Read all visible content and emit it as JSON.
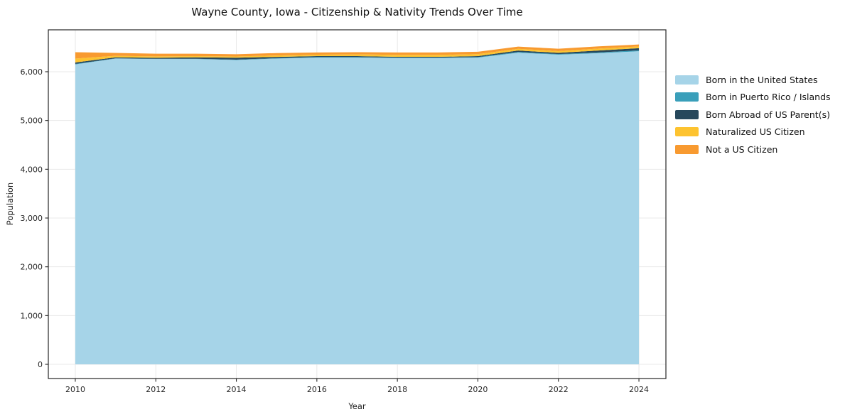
{
  "chart_data": {
    "type": "area",
    "stacked": true,
    "title": "Wayne County, Iowa - Citizenship & Nativity Trends Over Time",
    "xlabel": "Year",
    "ylabel": "Population",
    "x": [
      2010,
      2011,
      2012,
      2013,
      2014,
      2015,
      2016,
      2017,
      2018,
      2019,
      2020,
      2021,
      2022,
      2023,
      2024
    ],
    "series": [
      {
        "name": "Born in the United States",
        "color": "#a6d4e8",
        "values": [
          6150,
          6270,
          6260,
          6260,
          6240,
          6270,
          6290,
          6290,
          6280,
          6280,
          6290,
          6390,
          6350,
          6380,
          6420
        ]
      },
      {
        "name": "Born in Puerto Rico / Islands",
        "color": "#3a9fba",
        "values": [
          10,
          5,
          5,
          5,
          8,
          8,
          10,
          10,
          10,
          10,
          10,
          15,
          12,
          15,
          18
        ]
      },
      {
        "name": "Born Abroad of US Parent(s)",
        "color": "#27485c",
        "values": [
          30,
          20,
          20,
          30,
          40,
          25,
          20,
          20,
          15,
          15,
          20,
          30,
          25,
          40,
          45
        ]
      },
      {
        "name": "Naturalized US Citizen",
        "color": "#fdc330",
        "values": [
          80,
          30,
          30,
          25,
          25,
          30,
          30,
          35,
          40,
          40,
          40,
          35,
          35,
          40,
          35
        ]
      },
      {
        "name": "Not a US Citizen",
        "color": "#f89a30",
        "values": [
          130,
          60,
          55,
          50,
          45,
          50,
          45,
          45,
          50,
          50,
          50,
          45,
          50,
          45,
          40
        ]
      }
    ],
    "xticks": {
      "values": [
        2010,
        2012,
        2014,
        2016,
        2018,
        2020,
        2022,
        2024
      ],
      "labels": [
        "2010",
        "2012",
        "2014",
        "2016",
        "2018",
        "2020",
        "2022",
        "2024"
      ]
    },
    "yticks": {
      "values": [
        0,
        1000,
        2000,
        3000,
        4000,
        5000,
        6000
      ],
      "labels": [
        "0",
        "1,000",
        "2,000",
        "3,000",
        "4,000",
        "5,000",
        "6,000"
      ]
    },
    "xlim": [
      2009.33,
      2024.67
    ],
    "ylim": [
      -291,
      6859
    ],
    "grid": true,
    "legend_position": "right"
  }
}
